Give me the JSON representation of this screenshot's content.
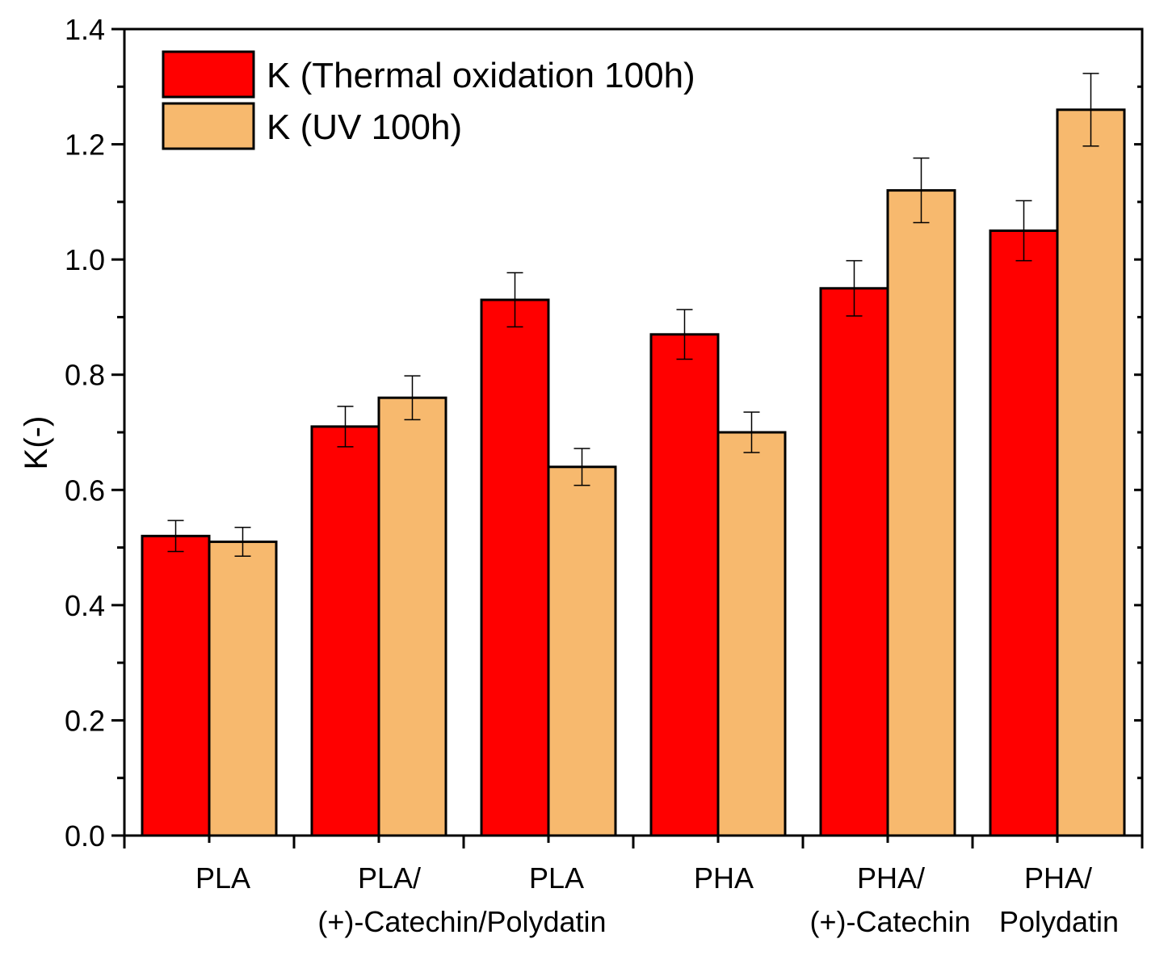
{
  "chart_data": {
    "type": "bar",
    "title": "",
    "xlabel": "",
    "ylabel": "K(-)",
    "ylim": [
      0,
      1.4
    ],
    "yticks": [
      "0.0",
      "0.2",
      "0.4",
      "0.6",
      "0.8",
      "1.0",
      "1.2",
      "1.4"
    ],
    "categories": [
      [
        "PLA"
      ],
      [
        "PLA/"
      ],
      [
        "PLA"
      ],
      [
        "PHA"
      ],
      [
        "PHA/"
      ],
      [
        "PHA/"
      ]
    ],
    "category_second_line": {
      "left": "(+)-Catechin/Polydatin",
      "center_a": "(+)-Catechin",
      "center_b": "Polydatin"
    },
    "series": [
      {
        "name": "K (Thermal oxidation 100h)",
        "color": "#ff0000",
        "values": [
          0.52,
          0.71,
          0.93,
          0.87,
          0.95,
          1.05
        ],
        "errors": [
          0.027,
          0.035,
          0.047,
          0.043,
          0.048,
          0.052
        ]
      },
      {
        "name": "K (UV 100h)",
        "color": "#f7b96e",
        "values": [
          0.51,
          0.76,
          0.64,
          0.7,
          1.12,
          1.26
        ],
        "errors": [
          0.025,
          0.038,
          0.032,
          0.035,
          0.056,
          0.063
        ]
      }
    ],
    "legend_position": "top-left",
    "grid": false
  }
}
